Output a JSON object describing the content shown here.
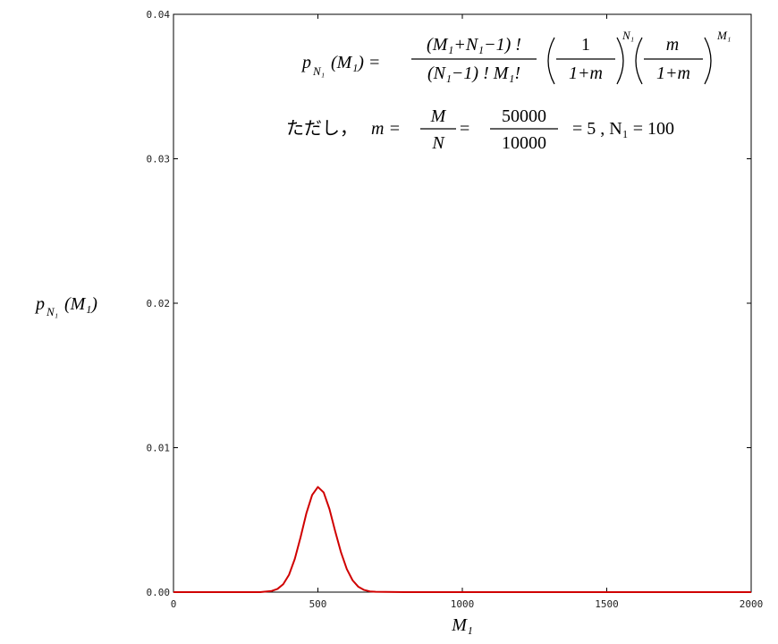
{
  "chart_data": {
    "type": "line",
    "x": [
      0,
      300,
      340,
      360,
      380,
      400,
      420,
      440,
      460,
      480,
      500,
      520,
      540,
      560,
      580,
      600,
      620,
      640,
      660,
      680,
      700,
      800,
      1000,
      1500,
      2000
    ],
    "values": [
      0,
      2e-06,
      8e-05,
      0.00022,
      0.00055,
      0.0012,
      0.0023,
      0.0038,
      0.00545,
      0.00672,
      0.00728,
      0.0069,
      0.00575,
      0.0042,
      0.00275,
      0.0016,
      0.00082,
      0.00037,
      0.00015,
      5e-05,
      2e-05,
      0,
      0,
      0,
      0
    ],
    "color": "#d00000",
    "xlim": [
      0,
      2000
    ],
    "xticks": [
      0,
      500,
      1000,
      1500,
      2000
    ],
    "ylim": [
      0,
      0.04
    ],
    "yticks": [
      {
        "value": 0,
        "label": "0.00"
      },
      0.01,
      0.02,
      0.03,
      0.04
    ],
    "x_label": {
      "main": "M₁"
    },
    "y_label": {
      "p": "p",
      "sub": "N₁",
      "rest": "(M₁)"
    },
    "annotation": {
      "line1": {
        "p": "p",
        "sub": "N₁",
        "lhs": "(M₁) =",
        "num": "(M₁+N₁−1) !",
        "den": "(N₁−1) ! M₁!",
        "f2num": "1",
        "f2den": "1+m",
        "exp1": "N₁",
        "f3num": "m",
        "f3den": "1+m",
        "exp2": "M₁"
      },
      "line2": {
        "pre": "ただし，",
        "m": "m =",
        "fnum": "M",
        "fden": "N",
        "eq": "=",
        "num": "50000",
        "den": "10000",
        "rest": "= 5 ,  N₁ = 100"
      }
    }
  }
}
